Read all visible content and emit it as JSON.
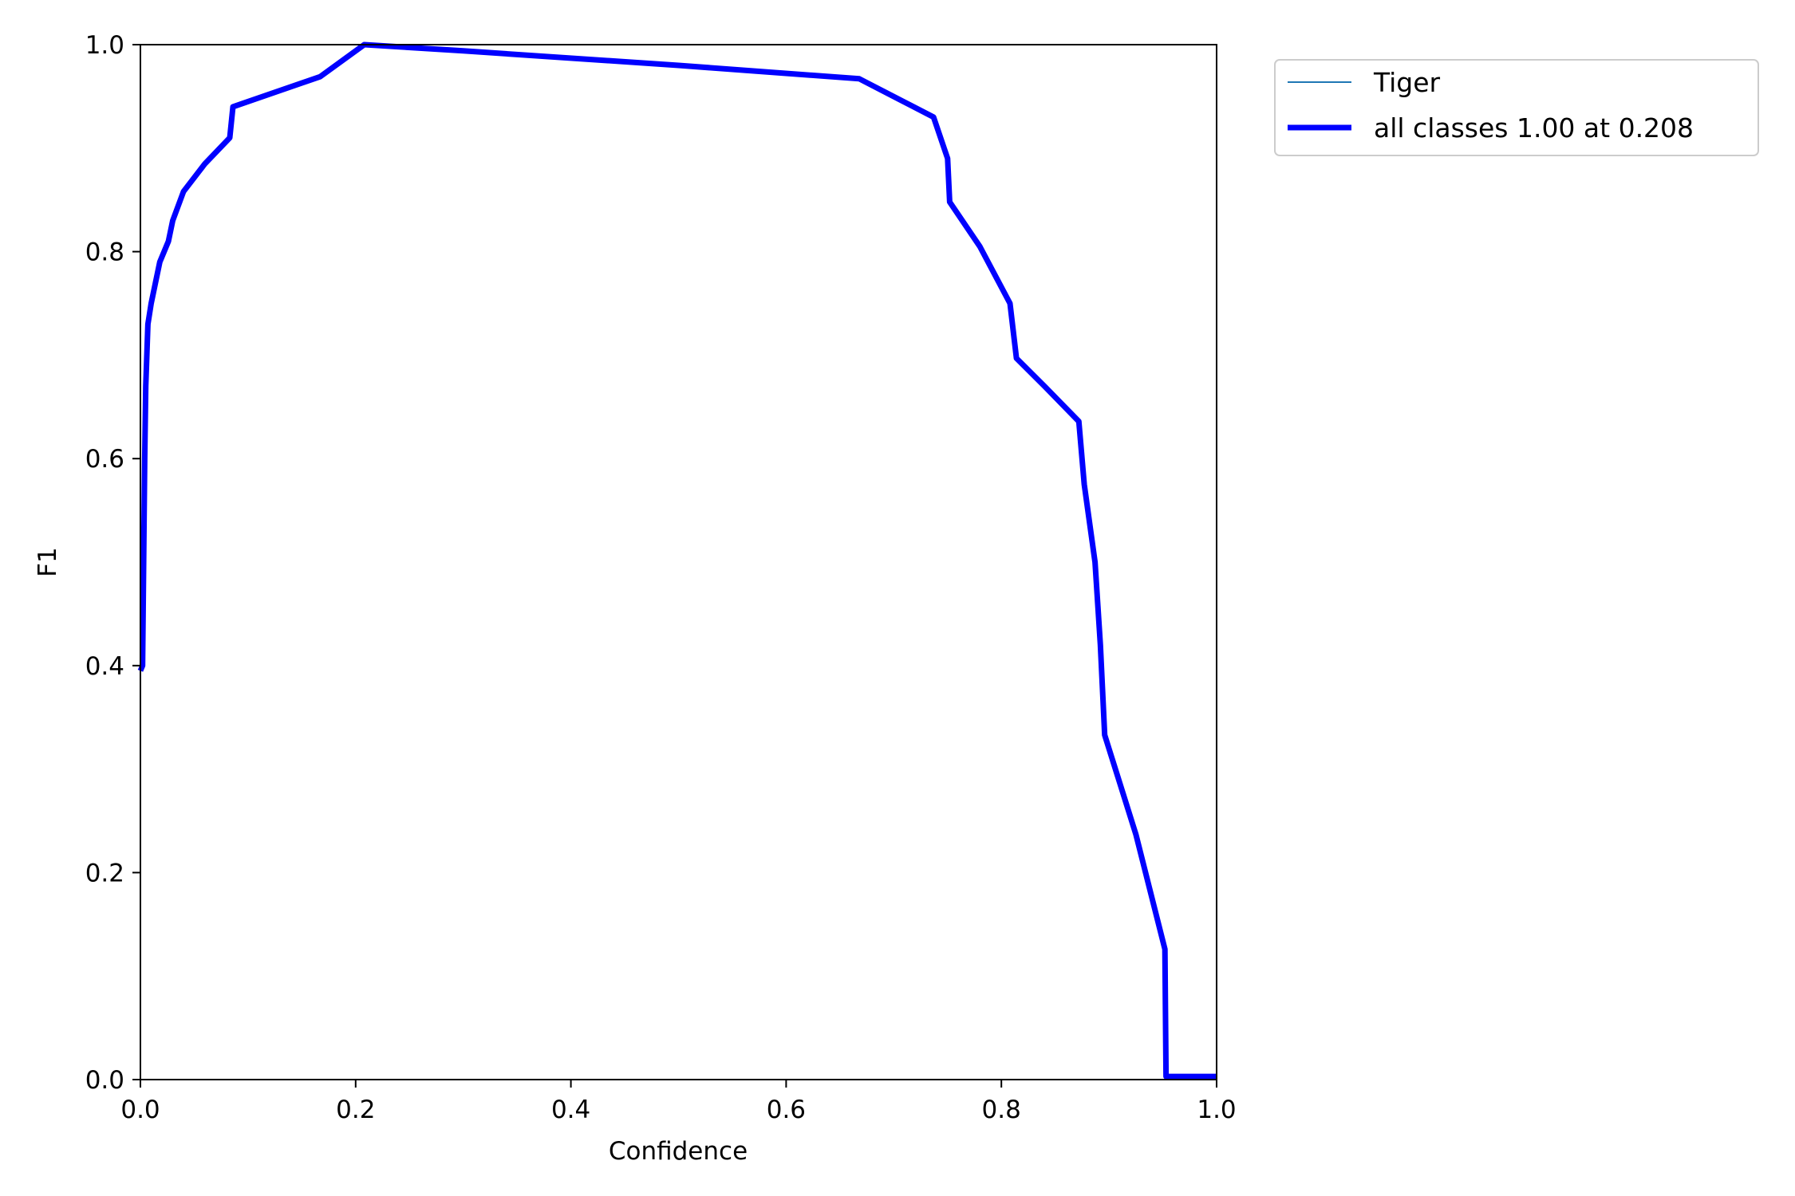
{
  "chart_data": {
    "type": "line",
    "title": "",
    "xlabel": "Confidence",
    "ylabel": "F1",
    "xlim": [
      0.0,
      1.0
    ],
    "ylim": [
      0.0,
      1.0
    ],
    "x_ticks": [
      "0.0",
      "0.2",
      "0.4",
      "0.6",
      "0.8",
      "1.0"
    ],
    "y_ticks": [
      "0.0",
      "0.2",
      "0.4",
      "0.6",
      "0.8",
      "1.0"
    ],
    "grid": false,
    "legend": {
      "placement": "outside-top-right",
      "entries": [
        {
          "label": "Tiger",
          "color": "#1f77b4",
          "style": "thin"
        },
        {
          "label": "all classes 1.00 at 0.208",
          "color": "#0000ff",
          "style": "thick"
        }
      ]
    },
    "series": [
      {
        "name": "Tiger",
        "color": "#1f77b4",
        "x": [
          0.0,
          0.002,
          0.004,
          0.005,
          0.007,
          0.01,
          0.014,
          0.018,
          0.026,
          0.03,
          0.04,
          0.06,
          0.083,
          0.086,
          0.167,
          0.208,
          0.3,
          0.5,
          0.668,
          0.737,
          0.75,
          0.752,
          0.78,
          0.808,
          0.814,
          0.84,
          0.872,
          0.877,
          0.887,
          0.892,
          0.896,
          0.925,
          0.952,
          0.953,
          1.0
        ],
        "y": [
          0.395,
          0.4,
          0.6,
          0.67,
          0.73,
          0.75,
          0.77,
          0.79,
          0.81,
          0.83,
          0.858,
          0.885,
          0.91,
          0.94,
          0.969,
          1.0,
          0.994,
          0.98,
          0.967,
          0.93,
          0.89,
          0.848,
          0.805,
          0.75,
          0.697,
          0.67,
          0.636,
          0.575,
          0.5,
          0.42,
          0.333,
          0.237,
          0.126,
          0.003,
          0.003
        ]
      },
      {
        "name": "all classes 1.00 at 0.208",
        "color": "#0000ff",
        "x": [
          0.0,
          0.002,
          0.004,
          0.005,
          0.007,
          0.01,
          0.014,
          0.018,
          0.026,
          0.03,
          0.04,
          0.06,
          0.083,
          0.086,
          0.167,
          0.208,
          0.3,
          0.5,
          0.668,
          0.737,
          0.75,
          0.752,
          0.78,
          0.808,
          0.814,
          0.84,
          0.872,
          0.877,
          0.887,
          0.892,
          0.896,
          0.925,
          0.952,
          0.953,
          1.0
        ],
        "y": [
          0.395,
          0.4,
          0.6,
          0.67,
          0.73,
          0.75,
          0.77,
          0.79,
          0.81,
          0.83,
          0.858,
          0.885,
          0.91,
          0.94,
          0.969,
          1.0,
          0.994,
          0.98,
          0.967,
          0.93,
          0.89,
          0.848,
          0.805,
          0.75,
          0.697,
          0.67,
          0.636,
          0.575,
          0.5,
          0.42,
          0.333,
          0.237,
          0.126,
          0.003,
          0.003
        ]
      }
    ]
  }
}
